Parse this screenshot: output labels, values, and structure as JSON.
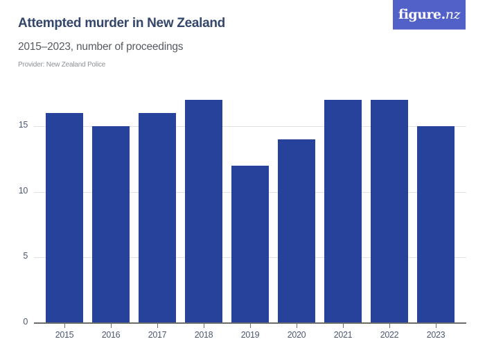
{
  "header": {
    "title": "Attempted murder in New Zealand",
    "subtitle": "2015–2023, number of proceedings",
    "provider": "Provider: New Zealand Police"
  },
  "logo": {
    "text_main": "figure.",
    "text_nz": "nz",
    "background_color": "#5261c8"
  },
  "colors": {
    "bar": "#26429a",
    "gridline": "#e1e1e1",
    "axis": "#6b6b6b",
    "title": "#34466b"
  },
  "chart_data": {
    "type": "bar",
    "title": "Attempted murder in New Zealand",
    "subtitle": "2015–2023, number of proceedings",
    "categories": [
      "2015",
      "2016",
      "2017",
      "2018",
      "2019",
      "2020",
      "2021",
      "2022",
      "2023"
    ],
    "values": [
      16,
      15,
      16,
      17,
      12,
      14,
      17,
      17,
      15
    ],
    "xlabel": "",
    "ylabel": "",
    "ylim": [
      0,
      17
    ],
    "yticks": [
      "0",
      "5",
      "10",
      "15"
    ],
    "grid": true,
    "legend": null
  }
}
